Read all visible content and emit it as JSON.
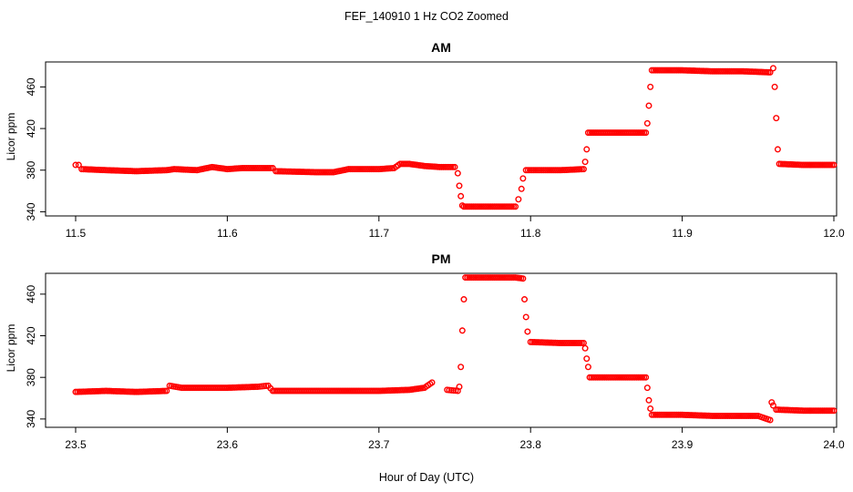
{
  "figure": {
    "title": "FEF_140910  1 Hz CO2 Zoomed",
    "xlabel": "Hour of Day (UTC)"
  },
  "chart_data": [
    {
      "type": "scatter",
      "title": "AM",
      "xlabel": "",
      "ylabel": "Licor ppm",
      "xlim": [
        11.5,
        12.0
      ],
      "ylim": [
        336,
        484
      ],
      "xticks": [
        "11.5",
        "11.6",
        "11.7",
        "11.8",
        "11.9",
        "12.0"
      ],
      "xtick_values": [
        11.5,
        11.6,
        11.7,
        11.8,
        11.9,
        12.0
      ],
      "yticks": [
        "340",
        "380",
        "420",
        "460"
      ],
      "ytick_values": [
        340,
        380,
        420,
        460
      ],
      "grid": false,
      "marker": "open-circle",
      "color": "#ff0000",
      "series": [
        {
          "x": [
            11.5,
            11.502,
            11.504,
            11.52,
            11.54,
            11.56,
            11.565,
            11.58,
            11.59,
            11.6,
            11.61,
            11.62,
            11.63,
            11.632,
            11.66,
            11.67,
            11.68,
            11.7,
            11.71,
            11.714,
            11.72,
            11.73,
            11.74,
            11.75,
            11.752,
            11.753,
            11.754,
            11.755,
            11.756,
            11.77,
            11.79,
            11.792,
            11.794,
            11.795,
            11.797,
            11.81,
            11.82,
            11.835,
            11.836,
            11.837,
            11.838,
            11.86,
            11.876,
            11.877,
            11.878,
            11.879,
            11.88,
            11.9,
            11.92,
            11.94,
            11.958,
            11.96,
            11.961,
            11.962,
            11.963,
            11.964,
            11.98,
            12.0
          ],
          "y": [
            385,
            385,
            381,
            380,
            379,
            380,
            381,
            380,
            383,
            381,
            382,
            382,
            382,
            379,
            378,
            378,
            381,
            381,
            382,
            386,
            386,
            384,
            383,
            383,
            377,
            365,
            355,
            346,
            345,
            345,
            345,
            352,
            362,
            372,
            380,
            380,
            380,
            381,
            388,
            400,
            416,
            416,
            416,
            425,
            442,
            460,
            476,
            476,
            475,
            475,
            474,
            478,
            460,
            430,
            400,
            386,
            385,
            385
          ]
        }
      ]
    },
    {
      "type": "scatter",
      "title": "PM",
      "xlabel": "",
      "ylabel": "Licor ppm",
      "xlim": [
        23.5,
        24.0
      ],
      "ylim": [
        332,
        480
      ],
      "xticks": [
        "23.5",
        "23.6",
        "23.7",
        "23.8",
        "23.9",
        "24.0"
      ],
      "xtick_values": [
        23.5,
        23.6,
        23.7,
        23.8,
        23.9,
        24.0
      ],
      "yticks": [
        "340",
        "380",
        "420",
        "460"
      ],
      "ytick_values": [
        340,
        380,
        420,
        460
      ],
      "grid": false,
      "marker": "open-circle",
      "color": "#ff0000",
      "series": [
        {
          "x": [
            23.5,
            23.52,
            23.54,
            23.56,
            23.562,
            23.57,
            23.6,
            23.62,
            23.627,
            23.63,
            23.66,
            23.7,
            23.72,
            23.73,
            23.735,
            23.745,
            23.752,
            23.753,
            23.754,
            23.755,
            23.756,
            23.757,
            23.77,
            23.79,
            23.795,
            23.796,
            23.797,
            23.798,
            23.8,
            23.82,
            23.835,
            23.836,
            23.837,
            23.838,
            23.839,
            23.86,
            23.876,
            23.877,
            23.878,
            23.879,
            23.88,
            23.9,
            23.92,
            23.95,
            23.958,
            23.959,
            23.96,
            23.962,
            23.98,
            24.0
          ],
          "y": [
            366,
            367,
            366,
            367,
            372,
            370,
            370,
            371,
            372,
            367,
            367,
            367,
            368,
            370,
            375,
            368,
            367,
            371,
            390,
            425,
            455,
            476,
            476,
            476,
            475,
            455,
            438,
            424,
            414,
            413,
            413,
            408,
            398,
            390,
            380,
            380,
            380,
            370,
            358,
            350,
            344,
            344,
            343,
            343,
            339,
            356,
            353,
            349,
            348,
            348
          ]
        }
      ]
    }
  ]
}
